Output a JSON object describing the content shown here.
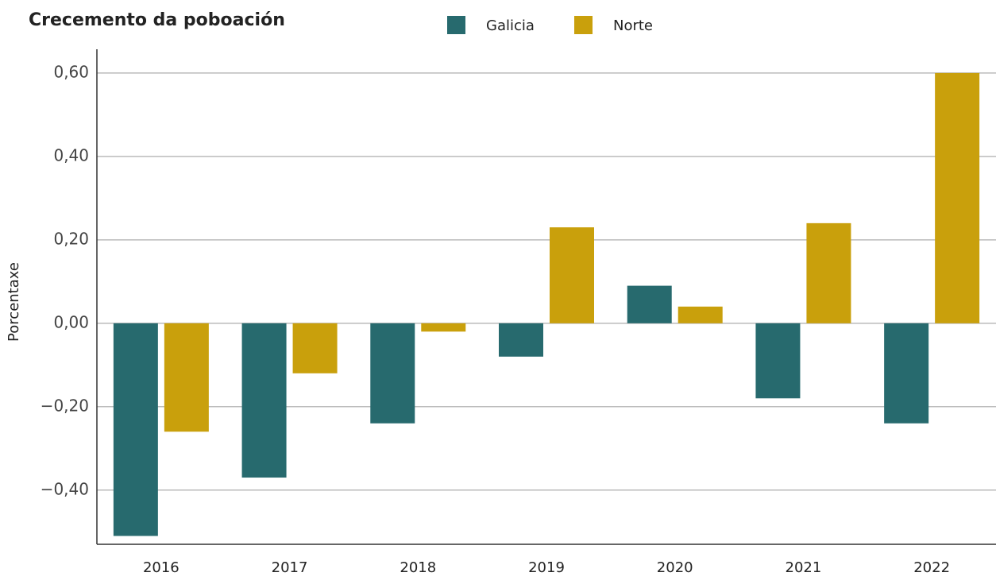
{
  "chart_data": {
    "type": "bar",
    "title": "Crecemento da poboación",
    "y_label": "Porcentaxe",
    "categories": [
      "2016",
      "2017",
      "2018",
      "2019",
      "2020",
      "2021",
      "2022"
    ],
    "series": [
      {
        "name": "Galicia",
        "color": "#276a6e",
        "values": [
          -0.51,
          -0.37,
          -0.24,
          -0.08,
          0.09,
          -0.18,
          -0.24
        ]
      },
      {
        "name": "Norte",
        "color": "#c9a00c",
        "values": [
          -0.26,
          -0.12,
          -0.02,
          0.23,
          0.04,
          0.24,
          0.6
        ]
      }
    ],
    "ylim": [
      -0.53,
      0.657
    ],
    "yticks": [
      {
        "value": -0.4,
        "label": "−0,40"
      },
      {
        "value": -0.2,
        "label": "−0,20"
      },
      {
        "value": 0,
        "label": "0,00"
      },
      {
        "value": 0.2,
        "label": "0,20"
      },
      {
        "value": 0.4,
        "label": "0,40"
      },
      {
        "value": 0.6,
        "label": "0,60"
      }
    ],
    "grid": true
  }
}
